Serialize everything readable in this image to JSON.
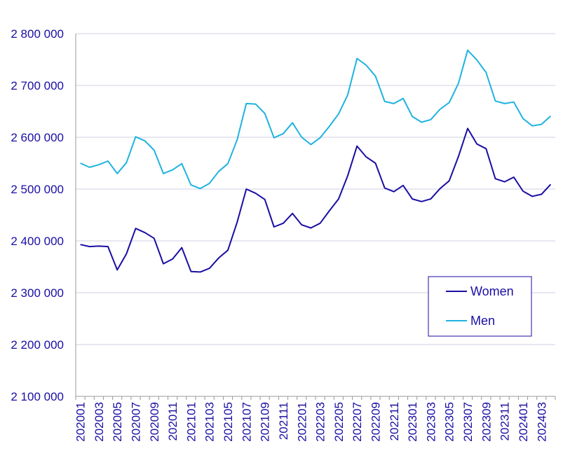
{
  "chart_data": {
    "type": "line",
    "title": "",
    "xlabel": "",
    "ylabel": "",
    "ylim": [
      2100000,
      2800000
    ],
    "yticks": [
      2100000,
      2200000,
      2300000,
      2400000,
      2500000,
      2600000,
      2700000,
      2800000
    ],
    "ytick_labels": [
      "2 100 000",
      "2 200 000",
      "2 300 000",
      "2 400 000",
      "2 500 000",
      "2 600 000",
      "2 700 000",
      "2 800 000"
    ],
    "x_tick_labels": [
      "202001",
      "202003",
      "202005",
      "202007",
      "202009",
      "202011",
      "202101",
      "202103",
      "202105",
      "202107",
      "202109",
      "202111",
      "202201",
      "202203",
      "202205",
      "202207",
      "202209",
      "202211",
      "202301",
      "202303",
      "202305",
      "202307",
      "202309",
      "202311",
      "202401",
      "202403"
    ],
    "x": [
      "202001",
      "202002",
      "202003",
      "202004",
      "202005",
      "202006",
      "202007",
      "202008",
      "202009",
      "202010",
      "202011",
      "202012",
      "202101",
      "202102",
      "202103",
      "202104",
      "202105",
      "202106",
      "202107",
      "202108",
      "202109",
      "202110",
      "202111",
      "202112",
      "202201",
      "202202",
      "202203",
      "202204",
      "202205",
      "202206",
      "202207",
      "202208",
      "202209",
      "202210",
      "202211",
      "202212",
      "202301",
      "202302",
      "202303",
      "202304",
      "202305",
      "202306",
      "202307",
      "202308",
      "202309",
      "202310",
      "202311",
      "202312",
      "202401",
      "202402",
      "202403",
      "202404"
    ],
    "grid": true,
    "legend_position": "right",
    "series": [
      {
        "name": "Women",
        "color": "#1a0ea3",
        "values": [
          2393000,
          2389000,
          2390000,
          2389000,
          2344000,
          2375000,
          2424000,
          2416000,
          2405000,
          2356000,
          2365000,
          2387000,
          2341000,
          2340000,
          2347000,
          2367000,
          2382000,
          2436000,
          2500000,
          2492000,
          2480000,
          2427000,
          2434000,
          2453000,
          2431000,
          2425000,
          2434000,
          2458000,
          2481000,
          2526000,
          2583000,
          2562000,
          2550000,
          2502000,
          2495000,
          2507000,
          2481000,
          2476000,
          2481000,
          2501000,
          2516000,
          2563000,
          2617000,
          2587000,
          2578000,
          2520000,
          2514000,
          2523000,
          2496000,
          2486000,
          2490000,
          2509000
        ]
      },
      {
        "name": "Men",
        "color": "#1fb3e0",
        "values": [
          2550000,
          2542000,
          2547000,
          2554000,
          2530000,
          2551000,
          2601000,
          2593000,
          2575000,
          2530000,
          2537000,
          2549000,
          2508000,
          2501000,
          2511000,
          2534000,
          2549000,
          2595000,
          2665000,
          2664000,
          2646000,
          2599000,
          2607000,
          2628000,
          2600000,
          2586000,
          2599000,
          2621000,
          2645000,
          2682000,
          2752000,
          2739000,
          2718000,
          2669000,
          2665000,
          2675000,
          2640000,
          2629000,
          2634000,
          2654000,
          2667000,
          2704000,
          2768000,
          2749000,
          2725000,
          2670000,
          2665000,
          2668000,
          2636000,
          2622000,
          2625000,
          2641000
        ]
      }
    ]
  }
}
